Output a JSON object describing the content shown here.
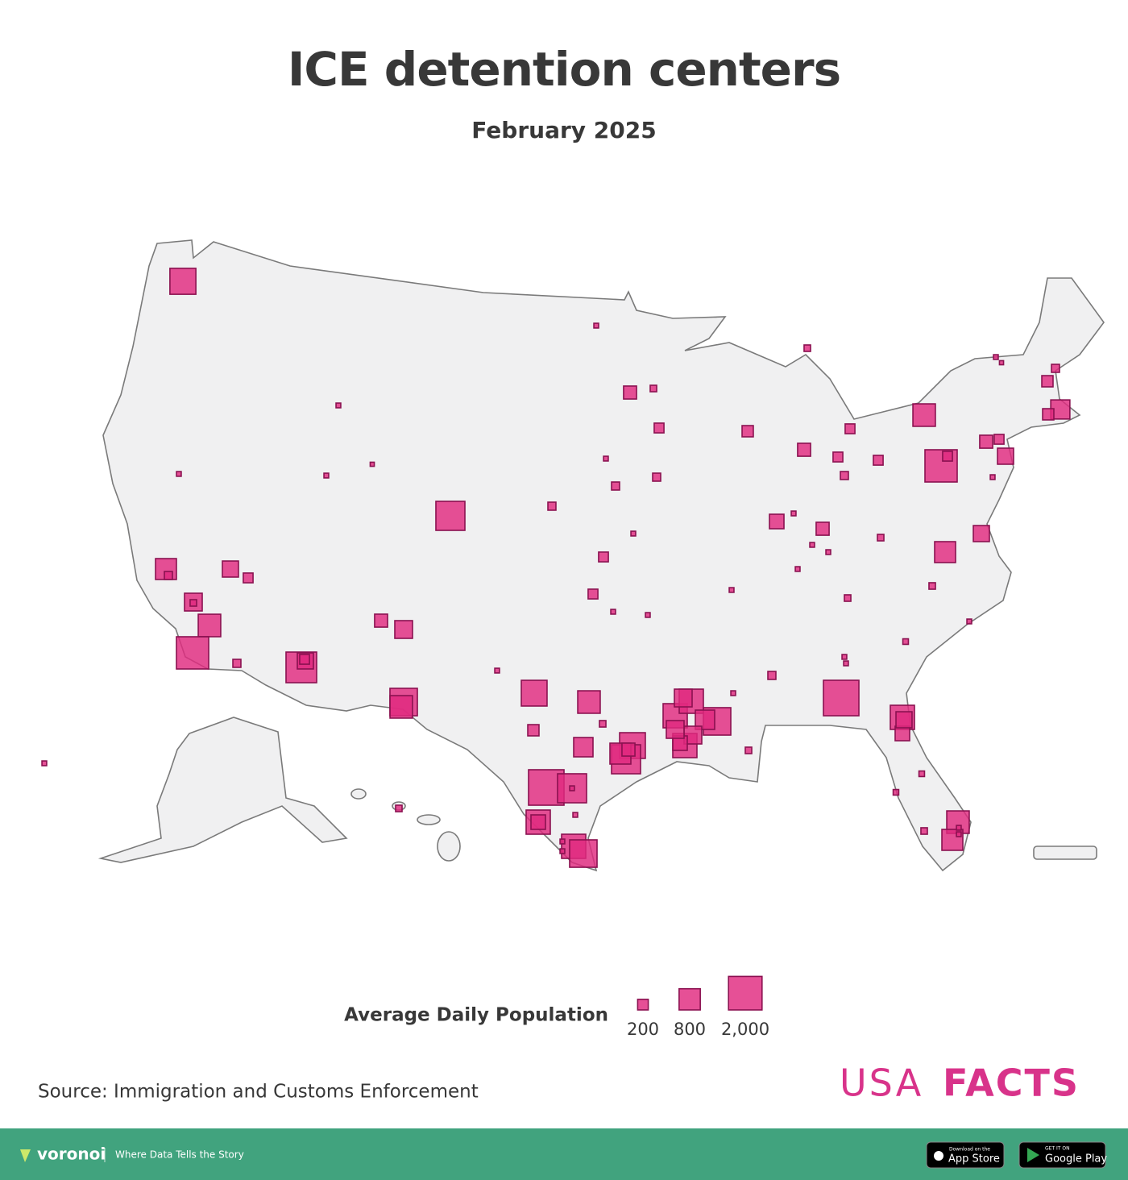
{
  "chart_data": {
    "type": "map",
    "title": "ICE detention centers",
    "subtitle": "February 2025",
    "color": "#e0297f",
    "values": [
      1200,
      40,
      300,
      75,
      170,
      225,
      75,
      300,
      170,
      170,
      115,
      170,
      900,
      1850,
      170,
      40,
      30,
      115,
      225,
      650,
      225,
      300,
      170,
      460,
      40,
      460,
      780,
      75,
      40,
      300,
      40,
      375,
      40,
      40,
      40,
      75,
      75,
      55,
      40,
      40,
      2240,
      115,
      1040,
      375,
      460,
      55,
      55,
      75,
      900,
      780,
      40,
      40,
      1040,
      1040,
      1340,
      665,
      1040,
      560,
      375,
      560,
      560,
      75,
      40,
      1180,
      900,
      225,
      75,
      665,
      1180,
      1500,
      780,
      300,
      2240,
      1500,
      40,
      1040,
      375,
      40,
      1040,
      1340,
      40,
      40,
      40,
      1340,
      900,
      300,
      560,
      1670,
      460,
      170,
      115,
      780,
      115,
      560,
      75,
      900,
      1850,
      460,
      170,
      40,
      40,
      40,
      30,
      1500,
      40,
      115,
      115,
      115,
      40,
      170,
      170,
      40,
      40,
      40,
      75,
      40
    ],
    "legend_title": "Average Daily Population",
    "legend_sizes": [
      200,
      800,
      {
        "value": 2000,
        "label": "2,000"
      }
    ],
    "source": "Source: Immigration and Customs Enforcement",
    "logo": [
      "USA",
      "FACTS"
    ]
  },
  "footer": {
    "brand": "voronoi",
    "tagline": "Where Data Tells the Story",
    "app_store": [
      "Download on the",
      "App Store"
    ],
    "google_play": [
      "GET IT ON",
      "Google Play"
    ]
  }
}
